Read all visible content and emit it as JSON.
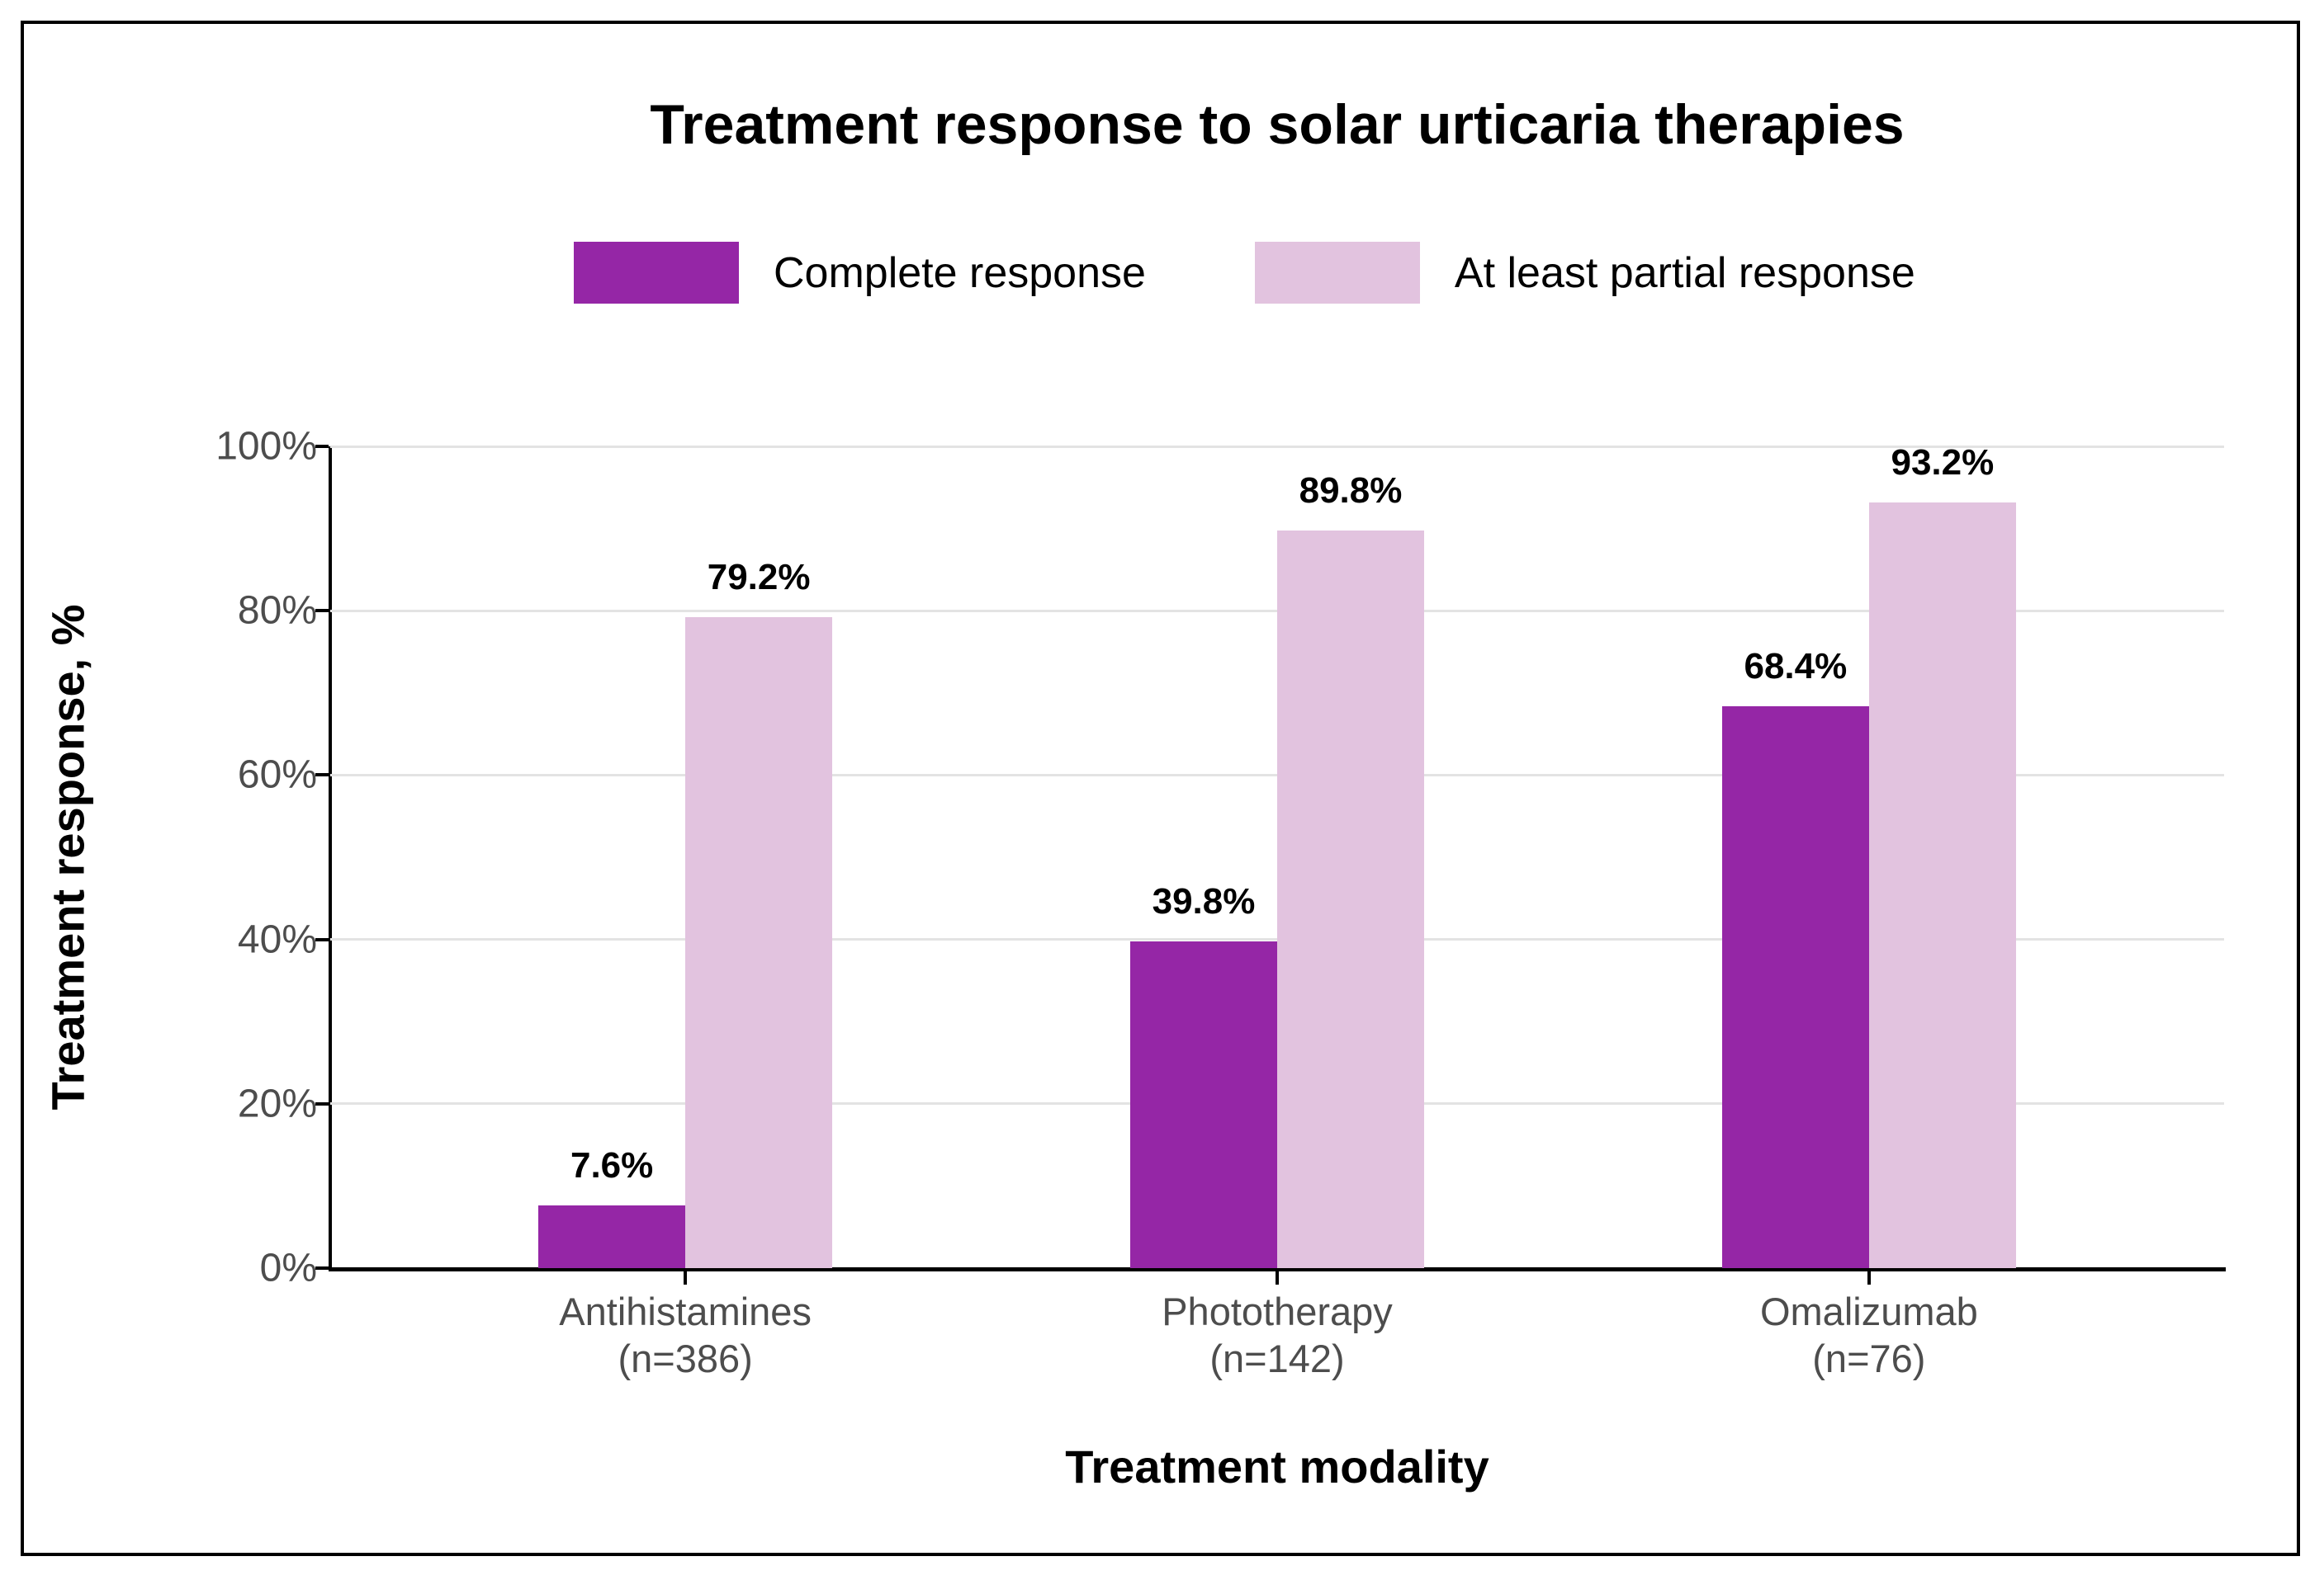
{
  "title": "Treatment response to solar urticaria therapies",
  "legend": {
    "items": [
      {
        "label": "Complete response",
        "color": "#9526A6"
      },
      {
        "label": "At least partial response",
        "color": "#E2C3DF"
      }
    ]
  },
  "axes": {
    "x_title": "Treatment modality",
    "y_title": "Treatment response, %"
  },
  "chart_data": {
    "type": "bar",
    "title": "Treatment response to solar urticaria therapies",
    "xlabel": "Treatment modality",
    "ylabel": "Treatment response, %",
    "categories": [
      {
        "name": "Antihistamines",
        "n_label": "(n=386)"
      },
      {
        "name": "Phototherapy",
        "n_label": "(n=142)"
      },
      {
        "name": "Omalizumab",
        "n_label": "(n=76)"
      }
    ],
    "series": [
      {
        "name": "Complete response",
        "color": "#9526A6",
        "values": [
          7.6,
          39.8,
          68.4
        ],
        "value_labels": [
          "7.6%",
          "39.8%",
          "68.4%"
        ]
      },
      {
        "name": "At least partial response",
        "color": "#E2C3DF",
        "values": [
          79.2,
          89.8,
          93.2
        ],
        "value_labels": [
          "79.2%",
          "89.8%",
          "93.2%"
        ]
      }
    ],
    "ylim": [
      0,
      100
    ],
    "yticks": [
      {
        "value": 0,
        "label": "0%"
      },
      {
        "value": 20,
        "label": "20%"
      },
      {
        "value": 40,
        "label": "40%"
      },
      {
        "value": 60,
        "label": "60%"
      },
      {
        "value": 80,
        "label": "80%"
      },
      {
        "value": 100,
        "label": "100%"
      }
    ],
    "grid": "horizontal-major",
    "legend_position": "top",
    "bar_layout": "dodged",
    "colors": {
      "grid_line": "#e3e3e3",
      "axis_line": "#000000",
      "tick_text": "#4d4d4d",
      "label_text": "#000000"
    }
  }
}
